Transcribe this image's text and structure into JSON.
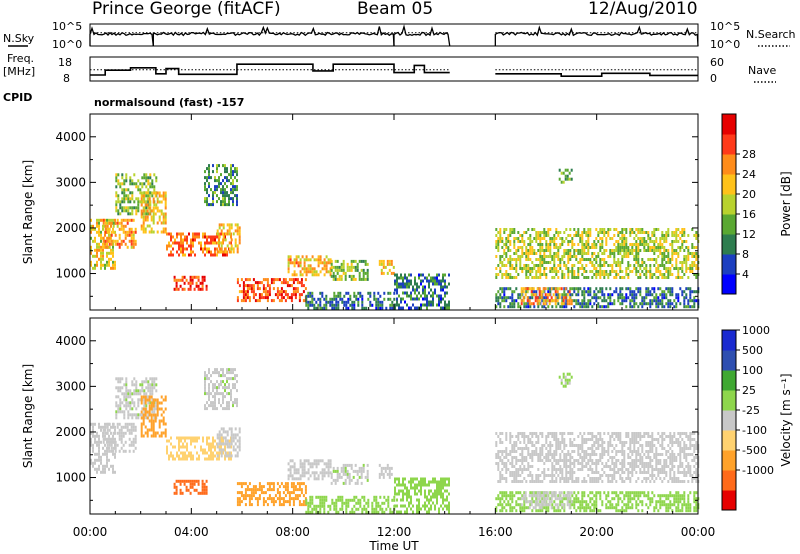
{
  "header": {
    "station": "Prince George (fitACF)",
    "beam": "Beam 05",
    "date": "12/Aug/2010"
  },
  "labels": {
    "n_sky": "N.Sky",
    "n_search": "N.Search",
    "freq_line1": "Freq.",
    "freq_line2": "[MHz]",
    "nave": "Nave",
    "cpid": "CPID",
    "cpid_value": "normalsound (fast) -157"
  },
  "noise_axis": {
    "left_top": "10^5",
    "left_bottom": "10^0",
    "right_top": "10^5",
    "right_bottom": "10^0"
  },
  "freq_axis": {
    "left_top": "18",
    "left_bottom": "8",
    "right_top": "60",
    "right_bottom": "0"
  },
  "colors": {
    "power_scale": [
      "#0000ff",
      "#1c3fc0",
      "#2e7d4f",
      "#5aa832",
      "#b8d22e",
      "#ffc21a",
      "#ff8c1a",
      "#ff3a1a",
      "#e60000"
    ],
    "velocity_scale": [
      "#e60000",
      "#ff6a1a",
      "#ffa22a",
      "#ffd270",
      "#c8c8c8",
      "#8ed64c",
      "#3fa832",
      "#2e4fb0",
      "#1a2ad0"
    ]
  },
  "chart_data": {
    "type": "heatmap",
    "x_unit": "Time UT (hours)",
    "xlim": [
      0,
      24
    ],
    "x_ticks": [
      "00:00",
      "04:00",
      "08:00",
      "12:00",
      "16:00",
      "20:00",
      "00:00"
    ],
    "x_tick_values": [
      0,
      4,
      8,
      12,
      16,
      20,
      24
    ],
    "xlabel": "Time UT",
    "data_gap": [
      14.2,
      16.0
    ],
    "noise": {
      "sky_segments": [
        [
          0,
          2.5
        ],
        [
          2.5,
          12.0
        ],
        [
          12.0,
          14.2
        ],
        [
          16.0,
          24
        ]
      ],
      "level_sky": 0.55,
      "level_search": 0.6
    },
    "frequency": {
      "steps": [
        [
          0,
          10.5
        ],
        [
          0.6,
          12.5
        ],
        [
          1.6,
          13.5
        ],
        [
          2.6,
          11.0
        ],
        [
          3.0,
          13.2
        ],
        [
          3.5,
          10.8
        ],
        [
          5.8,
          15.0
        ],
        [
          8.8,
          12.2
        ],
        [
          9.6,
          15.0
        ],
        [
          12.0,
          11.5
        ],
        [
          12.8,
          14.5
        ],
        [
          13.2,
          11.5
        ],
        [
          14.2,
          null
        ],
        [
          16.0,
          11.0
        ],
        [
          18.6,
          10.0
        ],
        [
          20.2,
          11.2
        ],
        [
          22.1,
          10.3
        ],
        [
          24,
          10.3
        ]
      ],
      "nave_level": 28,
      "ylim_left": [
        8,
        18
      ],
      "ylim_right": [
        0,
        60
      ]
    },
    "panels": [
      {
        "name": "power",
        "ylabel": "Slant Range [km]",
        "ylim": [
          200,
          4500
        ],
        "y_ticks": [
          1000,
          2000,
          3000,
          4000
        ],
        "colorbar_label": "Power [dB]",
        "colorbar_ticks": [
          "4",
          "8",
          "12",
          "16",
          "20",
          "24",
          "28"
        ]
      },
      {
        "name": "velocity",
        "ylabel": "Slant Range [km]",
        "ylim": [
          200,
          4500
        ],
        "y_ticks": [
          1000,
          2000,
          3000,
          4000
        ],
        "colorbar_label": "Velocity [m s⁻¹]",
        "colorbar_ticks": [
          "1000",
          "500",
          "100",
          "25",
          "-25",
          "-100",
          "-500",
          "-1000"
        ]
      }
    ],
    "echo_regions": [
      {
        "t0": 0.0,
        "t1": 1.0,
        "r0": 1100,
        "r1": 2200,
        "power": 18,
        "velocity": 0
      },
      {
        "t0": 0.5,
        "t1": 1.8,
        "r0": 1600,
        "r1": 2200,
        "power": 22,
        "velocity": 0
      },
      {
        "t0": 1.0,
        "t1": 2.6,
        "r0": 2300,
        "r1": 3200,
        "power": 14,
        "velocity": 10
      },
      {
        "t0": 2.0,
        "t1": 3.0,
        "r0": 1900,
        "r1": 2800,
        "power": 20,
        "velocity": -300
      },
      {
        "t0": 3.0,
        "t1": 5.6,
        "r0": 1400,
        "r1": 1900,
        "power": 24,
        "velocity": -50
      },
      {
        "t0": 3.3,
        "t1": 4.6,
        "r0": 650,
        "r1": 950,
        "power": 26,
        "velocity": -700
      },
      {
        "t0": 5.0,
        "t1": 5.9,
        "r0": 1500,
        "r1": 2100,
        "power": 20,
        "velocity": 0
      },
      {
        "t0": 4.5,
        "t1": 5.8,
        "r0": 2500,
        "r1": 3400,
        "power": 10,
        "velocity": 10
      },
      {
        "t0": 5.8,
        "t1": 8.5,
        "r0": 400,
        "r1": 900,
        "power": 26,
        "velocity": -200
      },
      {
        "t0": 7.8,
        "t1": 9.5,
        "r0": 1000,
        "r1": 1400,
        "power": 20,
        "velocity": 0
      },
      {
        "t0": 8.5,
        "t1": 12.0,
        "r0": 250,
        "r1": 600,
        "power": 8,
        "velocity": 60
      },
      {
        "t0": 9.5,
        "t1": 11.0,
        "r0": 900,
        "r1": 1300,
        "power": 14,
        "velocity": 10
      },
      {
        "t0": 11.4,
        "t1": 12.0,
        "r0": 1000,
        "r1": 1300,
        "power": 20,
        "velocity": 0
      },
      {
        "t0": 12.0,
        "t1": 14.2,
        "r0": 250,
        "r1": 1000,
        "power": 8,
        "velocity": 60
      },
      {
        "t0": 16.0,
        "t1": 24.0,
        "r0": 900,
        "r1": 2000,
        "power": 16,
        "velocity": 0
      },
      {
        "t0": 16.0,
        "t1": 24.0,
        "r0": 250,
        "r1": 700,
        "power": 8,
        "velocity": 80
      },
      {
        "t0": 17.0,
        "t1": 19.0,
        "r0": 350,
        "r1": 700,
        "power": 22,
        "velocity": 0
      },
      {
        "t0": 18.5,
        "t1": 19.0,
        "r0": 3000,
        "r1": 3300,
        "power": 12,
        "velocity": 30
      }
    ]
  }
}
